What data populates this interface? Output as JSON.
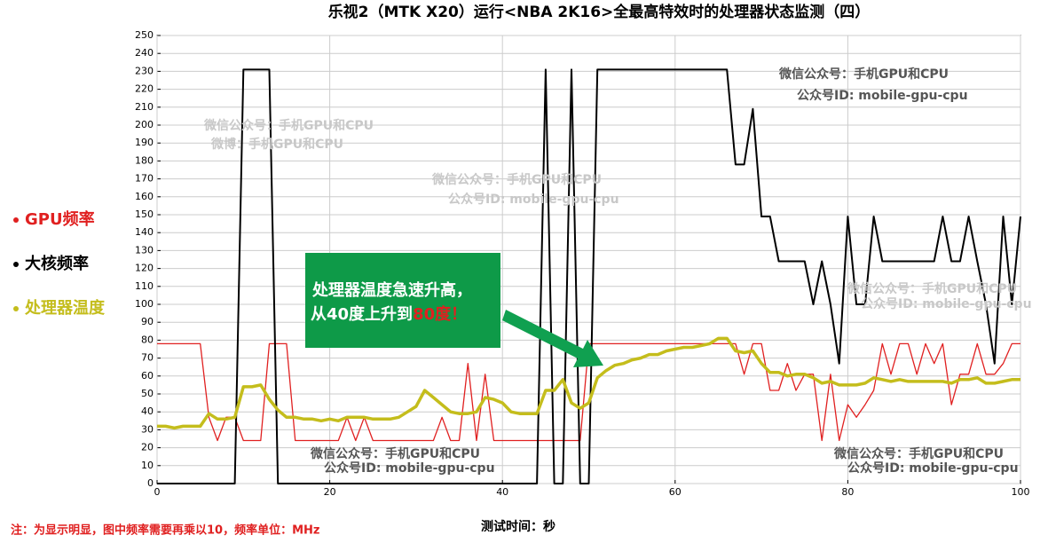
{
  "chart_data": {
    "type": "line",
    "title": "乐视2（MTK X20）运行<NBA 2K16>全最高特效时的处理器状态监测（四）",
    "x_label": "测试时间：秒",
    "note": "注：为显示明显，图中频率需要再乘以10，频率单位：MHz",
    "annotation": {
      "line1": "处理器温度急速升高，",
      "line2": "从40度上升到",
      "line2_highlight": "80度！",
      "color": "#0e9a48"
    },
    "watermarks": [
      "微信公众号：手机GPU和CPU",
      "微博：手机GPU和CPU",
      "微信公众号：手机GPU和CPU",
      "公众号ID: mobile-gpu-cpu",
      "微信公众号：手机GPU和CPU",
      "公众号ID: mobile-gpu-cpu",
      "微信公众号：手机GPU和CPU",
      "公众号ID: mobile-gpu-cpu",
      "微信公众号：手机GPU和CPU",
      "公众号ID: mobile-gpu-cpu",
      "微信公众号：手机GPU和CPU",
      "公众号ID: mobile-gpu-cpu"
    ],
    "x": [
      0,
      1,
      2,
      3,
      4,
      5,
      6,
      7,
      8,
      9,
      10,
      11,
      12,
      13,
      14,
      15,
      16,
      17,
      18,
      19,
      20,
      21,
      22,
      23,
      24,
      25,
      26,
      27,
      28,
      29,
      30,
      31,
      32,
      33,
      34,
      35,
      36,
      37,
      38,
      39,
      40,
      41,
      42,
      43,
      44,
      45,
      46,
      47,
      48,
      49,
      50,
      51,
      52,
      53,
      54,
      55,
      56,
      57,
      58,
      59,
      60,
      61,
      62,
      63,
      64,
      65,
      66,
      67,
      68,
      69,
      70,
      71,
      72,
      73,
      74,
      75,
      76,
      77,
      78,
      79,
      80,
      81,
      82,
      83,
      84,
      85,
      86,
      87,
      88,
      89,
      90,
      91,
      92,
      93,
      94,
      95,
      96,
      97,
      98,
      99,
      100
    ],
    "series": [
      {
        "name": "GPU频率",
        "color": "#e02020",
        "width": 1.3,
        "values": [
          78,
          78,
          78,
          78,
          78,
          78,
          37,
          24,
          37,
          37,
          24,
          24,
          24,
          78,
          78,
          78,
          24,
          24,
          24,
          24,
          24,
          24,
          37,
          24,
          37,
          24,
          24,
          24,
          24,
          24,
          24,
          24,
          24,
          37,
          24,
          24,
          67,
          24,
          61,
          24,
          24,
          24,
          24,
          24,
          24,
          24,
          24,
          24,
          24,
          24,
          78,
          78,
          78,
          78,
          78,
          78,
          78,
          78,
          78,
          78,
          78,
          78,
          78,
          78,
          78,
          78,
          78,
          78,
          61,
          78,
          78,
          52,
          52,
          67,
          52,
          61,
          61,
          24,
          61,
          24,
          44,
          37,
          44,
          52,
          78,
          61,
          78,
          78,
          61,
          78,
          67,
          78,
          44,
          61,
          61,
          78,
          61,
          61,
          67,
          78,
          78
        ]
      },
      {
        "name": "大核频率",
        "color": "#000000",
        "width": 2,
        "values": [
          0,
          0,
          0,
          0,
          0,
          0,
          0,
          0,
          0,
          0,
          231,
          231,
          231,
          231,
          0,
          0,
          0,
          0,
          0,
          0,
          0,
          0,
          0,
          0,
          0,
          0,
          0,
          0,
          0,
          0,
          0,
          0,
          0,
          0,
          0,
          0,
          0,
          0,
          0,
          0,
          0,
          0,
          0,
          0,
          0,
          231,
          0,
          0,
          231,
          0,
          0,
          231,
          231,
          231,
          231,
          231,
          231,
          231,
          231,
          231,
          231,
          231,
          231,
          231,
          231,
          231,
          231,
          178,
          178,
          209,
          149,
          149,
          124,
          124,
          124,
          124,
          100,
          124,
          100,
          67,
          149,
          100,
          100,
          149,
          124,
          124,
          124,
          124,
          124,
          124,
          124,
          149,
          124,
          124,
          149,
          124,
          100,
          67,
          149,
          100,
          149
        ]
      },
      {
        "name": "处理器温度",
        "color": "#c4bd1c",
        "width": 3.5,
        "values": [
          32,
          32,
          31,
          32,
          32,
          32,
          39,
          36,
          36,
          37,
          54,
          54,
          55,
          47,
          41,
          37,
          37,
          36,
          36,
          35,
          36,
          35,
          37,
          37,
          37,
          36,
          36,
          36,
          37,
          40,
          43,
          52,
          48,
          44,
          40,
          39,
          39,
          40,
          48,
          47,
          45,
          40,
          39,
          39,
          39,
          52,
          52,
          58,
          45,
          42,
          45,
          59,
          63,
          66,
          67,
          69,
          70,
          72,
          72,
          74,
          75,
          76,
          76,
          77,
          78,
          81,
          81,
          74,
          73,
          74,
          67,
          62,
          62,
          60,
          61,
          61,
          59,
          56,
          57,
          55,
          55,
          55,
          56,
          59,
          58,
          57,
          58,
          57,
          57,
          57,
          57,
          57,
          56,
          58,
          58,
          59,
          56,
          56,
          57,
          58,
          58
        ]
      }
    ],
    "xlim": [
      0,
      100
    ],
    "xticks": [
      0,
      20,
      40,
      60,
      80,
      100
    ],
    "ylim": [
      0,
      250
    ],
    "yticks": [
      0,
      10,
      20,
      30,
      40,
      50,
      60,
      70,
      80,
      90,
      100,
      110,
      120,
      130,
      140,
      150,
      160,
      170,
      180,
      190,
      200,
      210,
      220,
      230,
      240,
      250
    ],
    "grid": true
  }
}
